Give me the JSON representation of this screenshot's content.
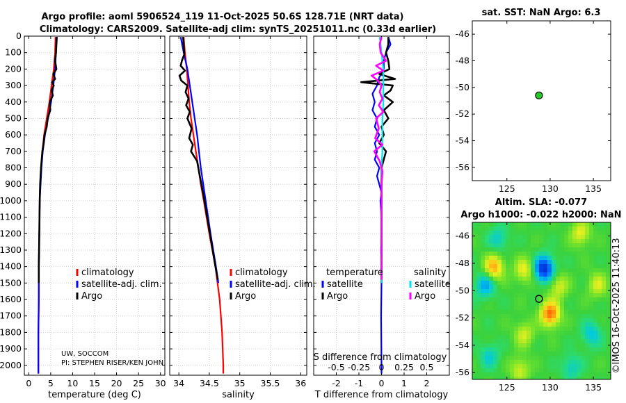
{
  "title_line1": "Argo profile: aoml 5906524_119 11-Oct-2025 50.6S 128.71E (NRT data)",
  "title_line2": "Climatology: CARS2009. Satellite-adj clim: synTS_20251011.nc (0.33d earlier)",
  "credit_line1": "UW, SOCCOM",
  "credit_line2": "PI: STEPHEN RISER/KEN JOHN",
  "watermark": "©IMOS 16-Oct-2025 11:40:13",
  "colors": {
    "climatology": "#ff0000",
    "satellite": "#0000ff",
    "argo": "#000000",
    "sat_salinity": "#00e5ee",
    "argo_salinity": "#ff00ff",
    "dot": "#22cc22"
  },
  "chart_data": [
    {
      "id": "temperature",
      "type": "line",
      "xlabel": "temperature (deg C)",
      "ylabel": "",
      "xlim": [
        -1,
        31
      ],
      "ylim": [
        2060,
        0
      ],
      "xticks": [
        0,
        5,
        10,
        15,
        20,
        25,
        30
      ],
      "xtick_labels": [
        "0",
        "5",
        "10",
        "15",
        "20",
        "25",
        "30"
      ],
      "yticks": [
        0,
        100,
        200,
        300,
        400,
        500,
        600,
        700,
        800,
        900,
        1000,
        1100,
        1200,
        1300,
        1400,
        1500,
        1600,
        1700,
        1800,
        1900,
        2000
      ],
      "ytick_labels": [
        "0",
        "100",
        "200",
        "300",
        "400",
        "500",
        "600",
        "700",
        "800",
        "900",
        "1000",
        "1100",
        "1200",
        "1300",
        "1400",
        "1500",
        "1600",
        "1700",
        "1800",
        "1900",
        "2000"
      ],
      "legend": [
        "climatology",
        "satellite-adj. clim.",
        "Argo"
      ],
      "series": [
        {
          "name": "climatology",
          "color": "#ff0000",
          "depth": [
            5,
            100,
            200,
            300,
            400,
            500,
            600,
            700,
            800,
            900,
            1000,
            1200,
            1400,
            1600,
            1800,
            2000,
            2050
          ],
          "values": [
            6.1,
            6.0,
            5.7,
            5.2,
            4.7,
            4.1,
            3.5,
            3.1,
            2.8,
            2.6,
            2.5,
            2.4,
            2.3,
            2.3,
            2.2,
            2.2,
            2.2
          ]
        },
        {
          "name": "satellite-adj. clim.",
          "color": "#0000ff",
          "depth": [
            5,
            100,
            200,
            300,
            400,
            500,
            600,
            700,
            800,
            900,
            1000,
            1200,
            1400,
            1600,
            1800,
            2000,
            2050
          ],
          "values": [
            6.3,
            6.2,
            6.0,
            5.6,
            5.1,
            4.4,
            3.7,
            3.2,
            2.9,
            2.7,
            2.5,
            2.4,
            2.3,
            2.3,
            2.2,
            2.2,
            2.2
          ]
        },
        {
          "name": "Argo",
          "color": "#000000",
          "depth": [
            5,
            50,
            100,
            150,
            200,
            230,
            260,
            280,
            300,
            330,
            360,
            400,
            450,
            500,
            550,
            600,
            650,
            700,
            800,
            900,
            1000,
            1200,
            1400,
            1500
          ],
          "values": [
            6.4,
            6.3,
            6.2,
            6.0,
            6.3,
            5.6,
            6.0,
            5.3,
            5.7,
            5.2,
            5.5,
            4.8,
            4.9,
            4.3,
            4.1,
            3.6,
            3.4,
            3.1,
            2.8,
            2.6,
            2.5,
            2.4,
            2.3,
            2.3
          ]
        }
      ]
    },
    {
      "id": "salinity",
      "type": "line",
      "xlabel": "salinity",
      "ylabel": "",
      "xlim": [
        33.85,
        36.1
      ],
      "ylim": [
        2060,
        0
      ],
      "xticks": [
        34,
        34.5,
        35,
        35.5,
        36
      ],
      "xtick_labels": [
        "34",
        "34.5",
        "35",
        "35.5",
        "36"
      ],
      "legend": [
        "climatology",
        "satellite-adj. clim.",
        "Argo"
      ],
      "series": [
        {
          "name": "climatology",
          "color": "#ff0000",
          "depth": [
            5,
            100,
            200,
            300,
            400,
            500,
            600,
            700,
            800,
            900,
            1000,
            1200,
            1400,
            1600,
            1800,
            2000,
            2050
          ],
          "values": [
            34.08,
            34.1,
            34.13,
            34.15,
            34.17,
            34.2,
            34.24,
            34.28,
            34.32,
            34.36,
            34.41,
            34.5,
            34.6,
            34.67,
            34.71,
            34.73,
            34.73
          ]
        },
        {
          "name": "satellite-adj. clim.",
          "color": "#0000ff",
          "depth": [
            5,
            100,
            200,
            300,
            400,
            500,
            600,
            700,
            800,
            900,
            1000,
            1200,
            1400,
            1500
          ],
          "values": [
            34.03,
            34.08,
            34.14,
            34.18,
            34.22,
            34.26,
            34.3,
            34.33,
            34.36,
            34.4,
            34.44,
            34.52,
            34.61,
            34.65
          ]
        },
        {
          "name": "Argo",
          "color": "#000000",
          "depth": [
            5,
            60,
            110,
            150,
            180,
            210,
            240,
            270,
            300,
            340,
            380,
            420,
            460,
            500,
            560,
            620,
            660,
            700,
            760,
            820,
            900,
            1000,
            1200,
            1400,
            1480
          ],
          "values": [
            34.07,
            34.08,
            34.09,
            34.05,
            34.03,
            34.1,
            34.01,
            34.04,
            34.14,
            34.11,
            34.16,
            34.12,
            34.18,
            34.14,
            34.21,
            34.17,
            34.23,
            34.2,
            34.3,
            34.33,
            34.37,
            34.42,
            34.51,
            34.6,
            34.64
          ]
        }
      ]
    },
    {
      "id": "difference",
      "type": "line",
      "xlabel": "T difference from climatology",
      "x2label": "S difference from climatology",
      "xlim": [
        -3,
        3
      ],
      "x2lim": [
        -0.75,
        0.75
      ],
      "ylim": [
        2060,
        0
      ],
      "xticks": [
        -2,
        -1,
        0,
        1,
        2
      ],
      "xtick_labels": [
        "-2",
        "-1",
        "0",
        "1",
        "2"
      ],
      "x2ticks": [
        -0.5,
        -0.25,
        0,
        0.25,
        0.5
      ],
      "x2tick_labels": [
        "-0.5",
        "-0.25",
        "0",
        "0.25",
        "0.5"
      ],
      "legend_temperature_title": "temperature",
      "legend_salinity_title": "salinity",
      "legend_temperature": [
        "satellite",
        "Argo"
      ],
      "legend_salinity": [
        "satellite",
        "Argo"
      ],
      "series": [
        {
          "name": "temperature satellite",
          "color": "#0000ff",
          "depth": [
            5,
            50,
            100,
            150,
            200,
            250,
            300,
            350,
            400,
            450,
            500,
            550,
            600,
            650,
            700,
            750,
            800,
            850,
            900,
            950,
            1000,
            1100,
            1200,
            1300,
            1400,
            1500,
            1700,
            2000,
            2050
          ],
          "values": [
            0.3,
            0.4,
            0.2,
            0.1,
            0.1,
            -0.1,
            -0.2,
            -0.4,
            -0.3,
            -0.4,
            -0.2,
            -0.3,
            -0.1,
            -0.3,
            -0.2,
            -0.3,
            -0.1,
            -0.2,
            -0.1,
            0.0,
            -0.05,
            0.0,
            0.0,
            -0.02,
            0.0,
            0.0,
            -0.02,
            0.0,
            0.0
          ]
        },
        {
          "name": "temperature Argo",
          "color": "#000000",
          "depth": [
            5,
            50,
            100,
            150,
            200,
            230,
            260,
            280,
            300,
            330,
            360,
            400,
            450,
            500,
            550,
            600,
            650,
            700,
            800,
            900,
            1000,
            1100,
            1200,
            1300,
            1400,
            1500
          ],
          "values": [
            0.3,
            0.3,
            0.2,
            0.3,
            0.35,
            -0.1,
            0.6,
            -0.9,
            0.5,
            0.4,
            0.1,
            0.5,
            0.1,
            0.3,
            0.0,
            0.1,
            -0.1,
            0.2,
            0.0,
            0.0,
            0.0,
            0.0,
            0.0,
            0.0,
            0.0,
            0.0
          ]
        },
        {
          "name": "salinity satellite",
          "color": "#00e5ee",
          "depth": [
            5,
            50,
            100,
            150,
            200,
            300,
            400,
            500,
            600,
            700,
            800,
            900,
            1000,
            1200,
            1400,
            1500
          ],
          "values": [
            -0.02,
            -0.01,
            0.0,
            0.01,
            0.02,
            0.02,
            0.02,
            0.01,
            0.01,
            0.01,
            0.0,
            0.0,
            0.0,
            0.0,
            0.0,
            0.0
          ]
        },
        {
          "name": "salinity Argo",
          "color": "#ff00ff",
          "depth": [
            5,
            50,
            100,
            150,
            180,
            210,
            240,
            270,
            300,
            340,
            380,
            420,
            460,
            500,
            560,
            620,
            660,
            700,
            760,
            820,
            900,
            1000,
            1200,
            1400,
            1480
          ],
          "values": [
            0.0,
            -0.02,
            -0.01,
            0.05,
            -0.06,
            0.02,
            -0.11,
            -0.04,
            0.0,
            -0.02,
            0.01,
            -0.03,
            0.02,
            -0.06,
            -0.03,
            -0.07,
            0.01,
            -0.08,
            -0.02,
            0.01,
            0.0,
            0.0,
            0.0,
            0.0,
            0.0
          ]
        }
      ]
    },
    {
      "id": "sst_map",
      "type": "scatter",
      "title": "sat. SST: NaN Argo: 6.3",
      "xlim": [
        121,
        137
      ],
      "ylim": [
        -57,
        -45
      ],
      "xticks": [
        125,
        130,
        135
      ],
      "xtick_labels": [
        "125",
        "130",
        "135"
      ],
      "yticks": [
        -46,
        -48,
        -50,
        -52,
        -54,
        -56
      ],
      "ytick_labels": [
        "-46",
        "-48",
        "-50",
        "-52",
        "-54",
        "-56"
      ],
      "points": [
        {
          "lon": 128.71,
          "lat": -50.6
        }
      ]
    },
    {
      "id": "sla_map",
      "type": "heatmap",
      "title_line1": "Altim. SLA: -0.077",
      "title_line2": "Argo h1000: -0.022 h2000: NaN",
      "xlim": [
        121,
        137
      ],
      "ylim": [
        -56.5,
        -45
      ],
      "xticks": [
        125,
        130,
        135
      ],
      "xtick_labels": [
        "125",
        "130",
        "135"
      ],
      "yticks": [
        -46,
        -48,
        -50,
        -52,
        -54,
        -56
      ],
      "ytick_labels": [
        "-46",
        "-48",
        "-50",
        "-52",
        "-54",
        "-56"
      ],
      "points": [
        {
          "lon": 128.71,
          "lat": -50.6
        }
      ],
      "blobs": [
        {
          "lon": 123.5,
          "lat": -48.3,
          "v": 0.55
        },
        {
          "lon": 127.0,
          "lat": -48.5,
          "v": 0.35
        },
        {
          "lon": 130.0,
          "lat": -51.7,
          "v": 0.7
        },
        {
          "lon": 129.3,
          "lat": -48.4,
          "v": -0.8
        },
        {
          "lon": 122.5,
          "lat": -49.6,
          "v": -0.4
        },
        {
          "lon": 127.0,
          "lat": -53.2,
          "v": 0.3
        },
        {
          "lon": 133.5,
          "lat": -45.8,
          "v": 0.35
        },
        {
          "lon": 131.0,
          "lat": -49.7,
          "v": 0.3
        },
        {
          "lon": 134.8,
          "lat": -53.2,
          "v": -0.3
        },
        {
          "lon": 123.0,
          "lat": -54.8,
          "v": -0.25
        },
        {
          "lon": 135.5,
          "lat": -49.6,
          "v": 0.3
        },
        {
          "lon": 126.5,
          "lat": -55.8,
          "v": 0.3
        },
        {
          "lon": 124.0,
          "lat": -46.2,
          "v": -0.25
        },
        {
          "lon": 132.5,
          "lat": -55.6,
          "v": -0.25
        }
      ]
    }
  ]
}
